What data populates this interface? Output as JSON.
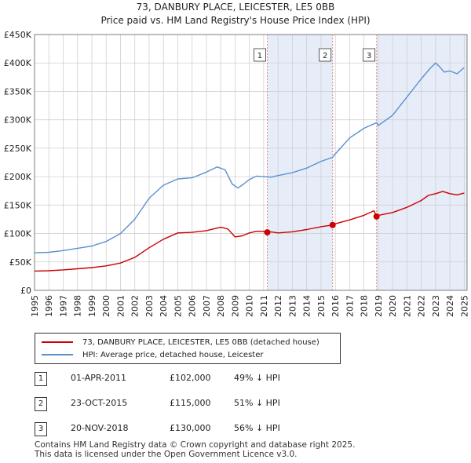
{
  "chart_data": {
    "type": "line",
    "title": "73, DANBURY PLACE, LEICESTER, LE5 0BB",
    "subtitle": "Price paid vs. HM Land Registry's House Price Index (HPI)",
    "ylim": [
      0,
      450000
    ],
    "xlim": [
      1995,
      2025.2
    ],
    "y_ticks": [
      0,
      50000,
      100000,
      150000,
      200000,
      250000,
      300000,
      350000,
      400000,
      450000
    ],
    "y_tick_labels": [
      "£0",
      "£50K",
      "£100K",
      "£150K",
      "£200K",
      "£250K",
      "£300K",
      "£350K",
      "£400K",
      "£450K"
    ],
    "x_ticks": [
      1995,
      1996,
      1997,
      1998,
      1999,
      2000,
      2001,
      2002,
      2003,
      2004,
      2005,
      2006,
      2007,
      2008,
      2009,
      2010,
      2011,
      2012,
      2013,
      2014,
      2015,
      2016,
      2017,
      2018,
      2019,
      2020,
      2021,
      2022,
      2023,
      2024,
      2025
    ],
    "x_tick_labels": [
      "1995",
      "1996",
      "1997",
      "1998",
      "1999",
      "2000",
      "2001",
      "2002",
      "2003",
      "2004",
      "2005",
      "2006",
      "2007",
      "2008",
      "2009",
      "2010",
      "2011",
      "2012",
      "2013",
      "2014",
      "2015",
      "2016",
      "2017",
      "2018",
      "2019",
      "2020",
      "2021",
      "2022",
      "2023",
      "2024",
      "2025"
    ],
    "grid": true,
    "colors": {
      "property": "#cc0000",
      "hpi": "#5b8fd0",
      "shade": "#e6ecf8",
      "vline": "#dd8888"
    },
    "shaded_ranges": [
      [
        2011.25,
        2015.81
      ],
      [
        2018.88,
        2025.2
      ]
    ],
    "series": [
      {
        "name": "73, DANBURY PLACE, LEICESTER, LE5 0BB (detached house)",
        "x": [
          1995,
          1996,
          1997,
          1998,
          1999,
          2000,
          2001,
          2002,
          2003,
          2004,
          2005,
          2006,
          2007,
          2008,
          2008.5,
          2009,
          2009.5,
          2010,
          2010.5,
          2011,
          2011.25,
          2011.5,
          2012,
          2013,
          2014,
          2015,
          2015.81,
          2016,
          2017,
          2018,
          2018.7,
          2018.88,
          2019,
          2020,
          2021,
          2022,
          2022.5,
          2023,
          2023.5,
          2024,
          2024.5,
          2025
        ],
        "values": [
          34000,
          34500,
          36000,
          38000,
          40000,
          43000,
          48000,
          58000,
          75000,
          90000,
          101000,
          102000,
          105000,
          111000,
          108000,
          94000,
          96000,
          101000,
          104000,
          104000,
          102000,
          103000,
          101000,
          103000,
          107000,
          112000,
          115000,
          117000,
          124000,
          132000,
          140000,
          130000,
          132000,
          137000,
          146000,
          158000,
          167000,
          170000,
          174000,
          170000,
          168000,
          171000
        ]
      },
      {
        "name": "HPI: Average price, detached house, Leicester",
        "x": [
          1995,
          1996,
          1997,
          1998,
          1999,
          2000,
          2001,
          2002,
          2003,
          2004,
          2005,
          2006,
          2007,
          2007.75,
          2008.3,
          2008.8,
          2009.2,
          2009.6,
          2010,
          2010.5,
          2011,
          2011.5,
          2012,
          2013,
          2014,
          2015,
          2015.81,
          2016,
          2017,
          2018,
          2018.88,
          2019,
          2020,
          2021,
          2022,
          2022.6,
          2023,
          2023.3,
          2023.6,
          2024,
          2024.5,
          2025
        ],
        "values": [
          66000,
          67000,
          70000,
          74000,
          78000,
          86000,
          100000,
          125000,
          162000,
          185000,
          196000,
          198000,
          208000,
          217000,
          212000,
          187000,
          180000,
          187000,
          195000,
          201000,
          200000,
          199000,
          202000,
          207000,
          215000,
          227000,
          234000,
          240000,
          268000,
          285000,
          295000,
          290000,
          308000,
          340000,
          372000,
          390000,
          400000,
          393000,
          384000,
          386000,
          381000,
          392000
        ]
      }
    ],
    "sales": [
      {
        "label": "1",
        "x": 2011.25,
        "value": 102000
      },
      {
        "label": "2",
        "x": 2015.81,
        "value": 115000
      },
      {
        "label": "3",
        "x": 2018.88,
        "value": 130000
      }
    ]
  },
  "legend": {
    "property_label": "73, DANBURY PLACE, LEICESTER, LE5 0BB (detached house)",
    "hpi_label": "HPI: Average price, detached house, Leicester"
  },
  "sales_table": [
    {
      "num": "1",
      "date": "01-APR-2011",
      "price": "£102,000",
      "hpi": "49% ↓ HPI"
    },
    {
      "num": "2",
      "date": "23-OCT-2015",
      "price": "£115,000",
      "hpi": "51% ↓ HPI"
    },
    {
      "num": "3",
      "date": "20-NOV-2018",
      "price": "£130,000",
      "hpi": "56% ↓ HPI"
    }
  ],
  "footer": {
    "line1": "Contains HM Land Registry data © Crown copyright and database right 2025.",
    "line2": "This data is licensed under the Open Government Licence v3.0."
  }
}
